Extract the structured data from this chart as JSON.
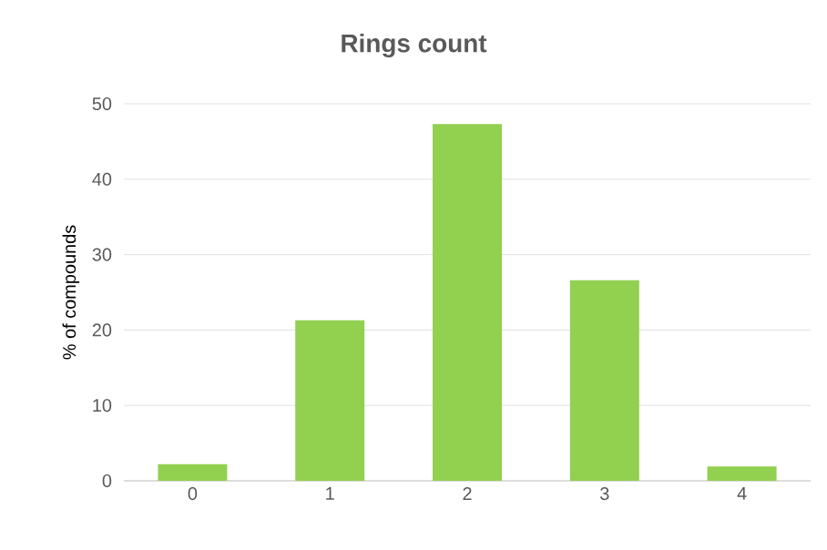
{
  "chart_data": {
    "type": "bar",
    "title": "Rings count",
    "ylabel": "% of compounds",
    "categories": [
      "0",
      "1",
      "2",
      "3",
      "4"
    ],
    "values": [
      2.2,
      21.3,
      47.3,
      26.6,
      1.9
    ],
    "color": "#92d050",
    "ylim": [
      0,
      50
    ],
    "yticks": [
      0,
      10,
      20,
      30,
      40,
      50
    ],
    "grid": "y"
  }
}
